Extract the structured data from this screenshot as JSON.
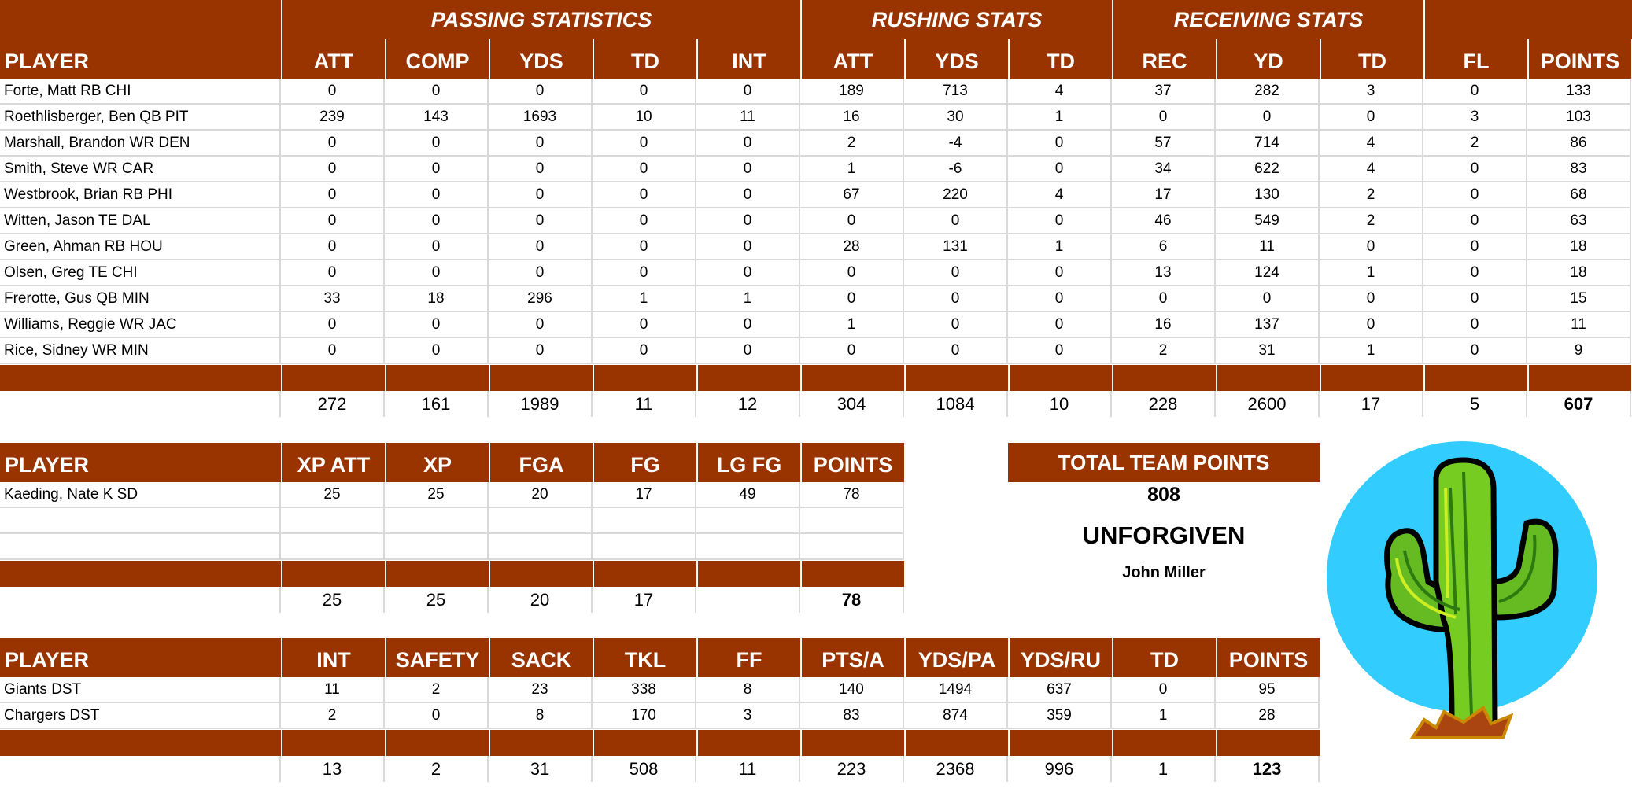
{
  "offense": {
    "group_headers": {
      "passing": "PASSING STATISTICS",
      "rushing": "RUSHING STATS",
      "receiving": "RECEIVING STATS"
    },
    "columns": [
      "PLAYER",
      "ATT",
      "COMP",
      "YDS",
      "TD",
      "INT",
      "ATT",
      "YDS",
      "TD",
      "REC",
      "YD",
      "TD",
      "FL",
      "POINTS"
    ],
    "rows": [
      [
        "Forte, Matt RB CHI",
        "0",
        "0",
        "0",
        "0",
        "0",
        "189",
        "713",
        "4",
        "37",
        "282",
        "3",
        "0",
        "133"
      ],
      [
        "Roethlisberger, Ben QB PIT",
        "239",
        "143",
        "1693",
        "10",
        "11",
        "16",
        "30",
        "1",
        "0",
        "0",
        "0",
        "3",
        "103"
      ],
      [
        "Marshall, Brandon WR DEN",
        "0",
        "0",
        "0",
        "0",
        "0",
        "2",
        "-4",
        "0",
        "57",
        "714",
        "4",
        "2",
        "86"
      ],
      [
        "Smith, Steve WR CAR",
        "0",
        "0",
        "0",
        "0",
        "0",
        "1",
        "-6",
        "0",
        "34",
        "622",
        "4",
        "0",
        "83"
      ],
      [
        "Westbrook, Brian RB PHI",
        "0",
        "0",
        "0",
        "0",
        "0",
        "67",
        "220",
        "4",
        "17",
        "130",
        "2",
        "0",
        "68"
      ],
      [
        "Witten, Jason TE DAL",
        "0",
        "0",
        "0",
        "0",
        "0",
        "0",
        "0",
        "0",
        "46",
        "549",
        "2",
        "0",
        "63"
      ],
      [
        "Green, Ahman RB HOU",
        "0",
        "0",
        "0",
        "0",
        "0",
        "28",
        "131",
        "1",
        "6",
        "11",
        "0",
        "0",
        "18"
      ],
      [
        "Olsen, Greg TE CHI",
        "0",
        "0",
        "0",
        "0",
        "0",
        "0",
        "0",
        "0",
        "13",
        "124",
        "1",
        "0",
        "18"
      ],
      [
        "Frerotte, Gus QB MIN",
        "33",
        "18",
        "296",
        "1",
        "1",
        "0",
        "0",
        "0",
        "0",
        "0",
        "0",
        "0",
        "15"
      ],
      [
        "Williams, Reggie WR JAC",
        "0",
        "0",
        "0",
        "0",
        "0",
        "1",
        "0",
        "0",
        "16",
        "137",
        "0",
        "0",
        "11"
      ],
      [
        "Rice, Sidney WR MIN",
        "0",
        "0",
        "0",
        "0",
        "0",
        "0",
        "0",
        "0",
        "2",
        "31",
        "1",
        "0",
        "9"
      ]
    ],
    "totals": [
      "",
      "272",
      "161",
      "1989",
      "11",
      "12",
      "304",
      "1084",
      "10",
      "228",
      "2600",
      "17",
      "5",
      "607"
    ]
  },
  "kicker": {
    "columns": [
      "PLAYER",
      "XP ATT",
      "XP",
      "FGA",
      "FG",
      "LG FG",
      "POINTS"
    ],
    "rows": [
      [
        "Kaeding, Nate K SD",
        "25",
        "25",
        "20",
        "17",
        "49",
        "78"
      ],
      [
        "",
        "",
        "",
        "",
        "",
        "",
        ""
      ],
      [
        "",
        "",
        "",
        "",
        "",
        "",
        ""
      ]
    ],
    "totals": [
      "",
      "25",
      "25",
      "20",
      "17",
      "",
      "78"
    ]
  },
  "defense": {
    "columns": [
      "PLAYER",
      "INT",
      "SAFETY",
      "SACK",
      "TKL",
      "FF",
      "PTS/A",
      "YDS/PA",
      "YDS/RU",
      "TD",
      "POINTS"
    ],
    "rows": [
      [
        "Giants DST",
        "11",
        "2",
        "23",
        "338",
        "8",
        "140",
        "1494",
        "637",
        "0",
        "95"
      ],
      [
        "Chargers DST",
        "2",
        "0",
        "8",
        "170",
        "3",
        "83",
        "874",
        "359",
        "1",
        "28"
      ]
    ],
    "totals": [
      "",
      "13",
      "2",
      "31",
      "508",
      "11",
      "223",
      "2368",
      "996",
      "1",
      "123"
    ]
  },
  "team": {
    "total_label": "TOTAL TEAM POINTS",
    "total_points": "808",
    "team_name": "UNFORGIVEN",
    "owner": "John Miller",
    "logo": "cactus-logo"
  },
  "colors": {
    "header_bg": "#993300",
    "header_text": "#ffffff",
    "logo_circle": "#33ccff",
    "cactus_green": "#66bb22"
  }
}
